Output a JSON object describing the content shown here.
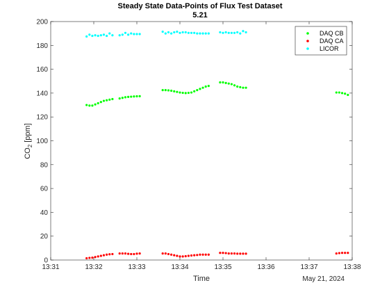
{
  "chart_data": {
    "type": "scatter",
    "title": "Steady State Data-Points of Flux Test Dataset",
    "subtitle": "5.21",
    "xlabel": "Time",
    "ylabel": "CO",
    "ylabel_sub": "2",
    "ylabel_unit": " [ppm]",
    "date_label": "May 21, 2024",
    "xlim": [
      "13:31",
      "13:38"
    ],
    "ylim": [
      0,
      200
    ],
    "x_ticks": [
      "13:31",
      "13:32",
      "13:33",
      "13:34",
      "13:35",
      "13:36",
      "13:37",
      "13:38"
    ],
    "y_ticks": [
      0,
      20,
      40,
      60,
      80,
      100,
      120,
      140,
      160,
      180,
      200
    ],
    "grid": false,
    "legend_position": "top-right",
    "colors": {
      "DAQ CB": "#00ff00",
      "DAQ CA": "#ff0000",
      "LICOR": "#00ffff"
    },
    "series": [
      {
        "name": "DAQ CB",
        "color": "#00ff00",
        "segments": [
          {
            "x": [
              "13:31:50",
              "13:31:54",
              "13:31:58",
              "13:32:02",
              "13:32:06",
              "13:32:10",
              "13:32:14",
              "13:32:18",
              "13:32:22",
              "13:32:26"
            ],
            "y": [
              130,
              129.5,
              129.5,
              130.5,
              131.5,
              132.5,
              133.5,
              134,
              134.5,
              135
            ]
          },
          {
            "x": [
              "13:32:36",
              "13:32:40",
              "13:32:44",
              "13:32:48",
              "13:32:52",
              "13:32:56",
              "13:33:00",
              "13:33:04"
            ],
            "y": [
              135.5,
              136,
              136.5,
              136.8,
              137,
              137.2,
              137.3,
              137.4
            ]
          },
          {
            "x": [
              "13:33:36",
              "13:33:40",
              "13:33:44",
              "13:33:48",
              "13:33:52",
              "13:33:56",
              "13:34:00",
              "13:34:04",
              "13:34:08",
              "13:34:12",
              "13:34:16",
              "13:34:20",
              "13:34:24",
              "13:34:28",
              "13:34:32",
              "13:34:36",
              "13:34:40"
            ],
            "y": [
              142.5,
              142.5,
              142.3,
              142,
              141.5,
              141,
              140.5,
              140.2,
              140,
              140.2,
              140.5,
              141.5,
              142.5,
              143.5,
              144.5,
              145.5,
              146
            ]
          },
          {
            "x": [
              "13:34:56",
              "13:35:00",
              "13:35:04",
              "13:35:08",
              "13:35:12",
              "13:35:16",
              "13:35:20",
              "13:35:24",
              "13:35:28",
              "13:35:32"
            ],
            "y": [
              149,
              149,
              148.5,
              148,
              147.5,
              146.5,
              145.5,
              145,
              144.5,
              144.5
            ]
          },
          {
            "x": [
              "13:37:38",
              "13:37:42",
              "13:37:46",
              "13:37:50",
              "13:37:54"
            ],
            "y": [
              140.5,
              140.5,
              140,
              139.5,
              138.5
            ]
          }
        ]
      },
      {
        "name": "DAQ CA",
        "color": "#ff0000",
        "segments": [
          {
            "x": [
              "13:31:50",
              "13:31:54",
              "13:31:58",
              "13:32:02",
              "13:32:06",
              "13:32:10",
              "13:32:14",
              "13:32:18",
              "13:32:22",
              "13:32:26"
            ],
            "y": [
              1.5,
              1.8,
              2,
              2.5,
              3,
              3.5,
              4,
              4.5,
              4.8,
              5
            ]
          },
          {
            "x": [
              "13:32:36",
              "13:32:40",
              "13:32:44",
              "13:32:48",
              "13:32:52",
              "13:32:56",
              "13:33:00",
              "13:33:04"
            ],
            "y": [
              5.5,
              5.5,
              5.5,
              5.2,
              5,
              5,
              5.3,
              5.5
            ]
          },
          {
            "x": [
              "13:33:36",
              "13:33:40",
              "13:33:44",
              "13:33:48",
              "13:33:52",
              "13:33:56",
              "13:34:00",
              "13:34:04",
              "13:34:08",
              "13:34:12",
              "13:34:16",
              "13:34:20",
              "13:34:24",
              "13:34:28",
              "13:34:32",
              "13:34:36",
              "13:34:40"
            ],
            "y": [
              5.5,
              5.5,
              5,
              4.5,
              4,
              3.5,
              3,
              3,
              3.2,
              3.5,
              3.8,
              4,
              4.2,
              4.5,
              4.5,
              4.5,
              4.5
            ]
          },
          {
            "x": [
              "13:34:56",
              "13:35:00",
              "13:35:04",
              "13:35:08",
              "13:35:12",
              "13:35:16",
              "13:35:20",
              "13:35:24",
              "13:35:28",
              "13:35:32"
            ],
            "y": [
              6,
              6,
              5.8,
              5.5,
              5.5,
              5.5,
              5.3,
              5.3,
              5.3,
              5.3
            ]
          },
          {
            "x": [
              "13:37:38",
              "13:37:42",
              "13:37:46",
              "13:37:50",
              "13:37:54"
            ],
            "y": [
              5.5,
              5.8,
              6,
              6,
              6
            ]
          }
        ]
      },
      {
        "name": "LICOR",
        "color": "#00ffff",
        "segments": [
          {
            "x": [
              "13:31:50",
              "13:31:54",
              "13:31:58",
              "13:32:02",
              "13:32:06",
              "13:32:10",
              "13:32:14",
              "13:32:18",
              "13:32:22",
              "13:32:26"
            ],
            "y": [
              187.5,
              189,
              188,
              188.5,
              188,
              188.5,
              189,
              188,
              190,
              188.5
            ]
          },
          {
            "x": [
              "13:32:36",
              "13:32:40",
              "13:32:44",
              "13:32:48",
              "13:32:52",
              "13:32:56",
              "13:33:00",
              "13:33:04"
            ],
            "y": [
              188.5,
              189,
              190.5,
              189,
              190,
              189.5,
              189.5,
              189.5
            ]
          },
          {
            "x": [
              "13:33:36",
              "13:33:40",
              "13:33:44",
              "13:33:48",
              "13:33:52",
              "13:33:56",
              "13:34:00",
              "13:34:04",
              "13:34:08",
              "13:34:12",
              "13:34:16",
              "13:34:20",
              "13:34:24",
              "13:34:28",
              "13:34:32",
              "13:34:36",
              "13:34:40"
            ],
            "y": [
              191.5,
              190,
              191,
              190,
              191,
              191.5,
              190.5,
              191,
              191,
              190.5,
              190.5,
              190.5,
              190,
              190,
              190,
              190,
              190
            ]
          },
          {
            "x": [
              "13:34:56",
              "13:35:00",
              "13:35:04",
              "13:35:08",
              "13:35:12",
              "13:35:16",
              "13:35:20",
              "13:35:24",
              "13:35:28",
              "13:35:32"
            ],
            "y": [
              191,
              190.5,
              191,
              190.5,
              190.5,
              190.5,
              191,
              190,
              192,
              191
            ]
          }
        ]
      }
    ]
  }
}
